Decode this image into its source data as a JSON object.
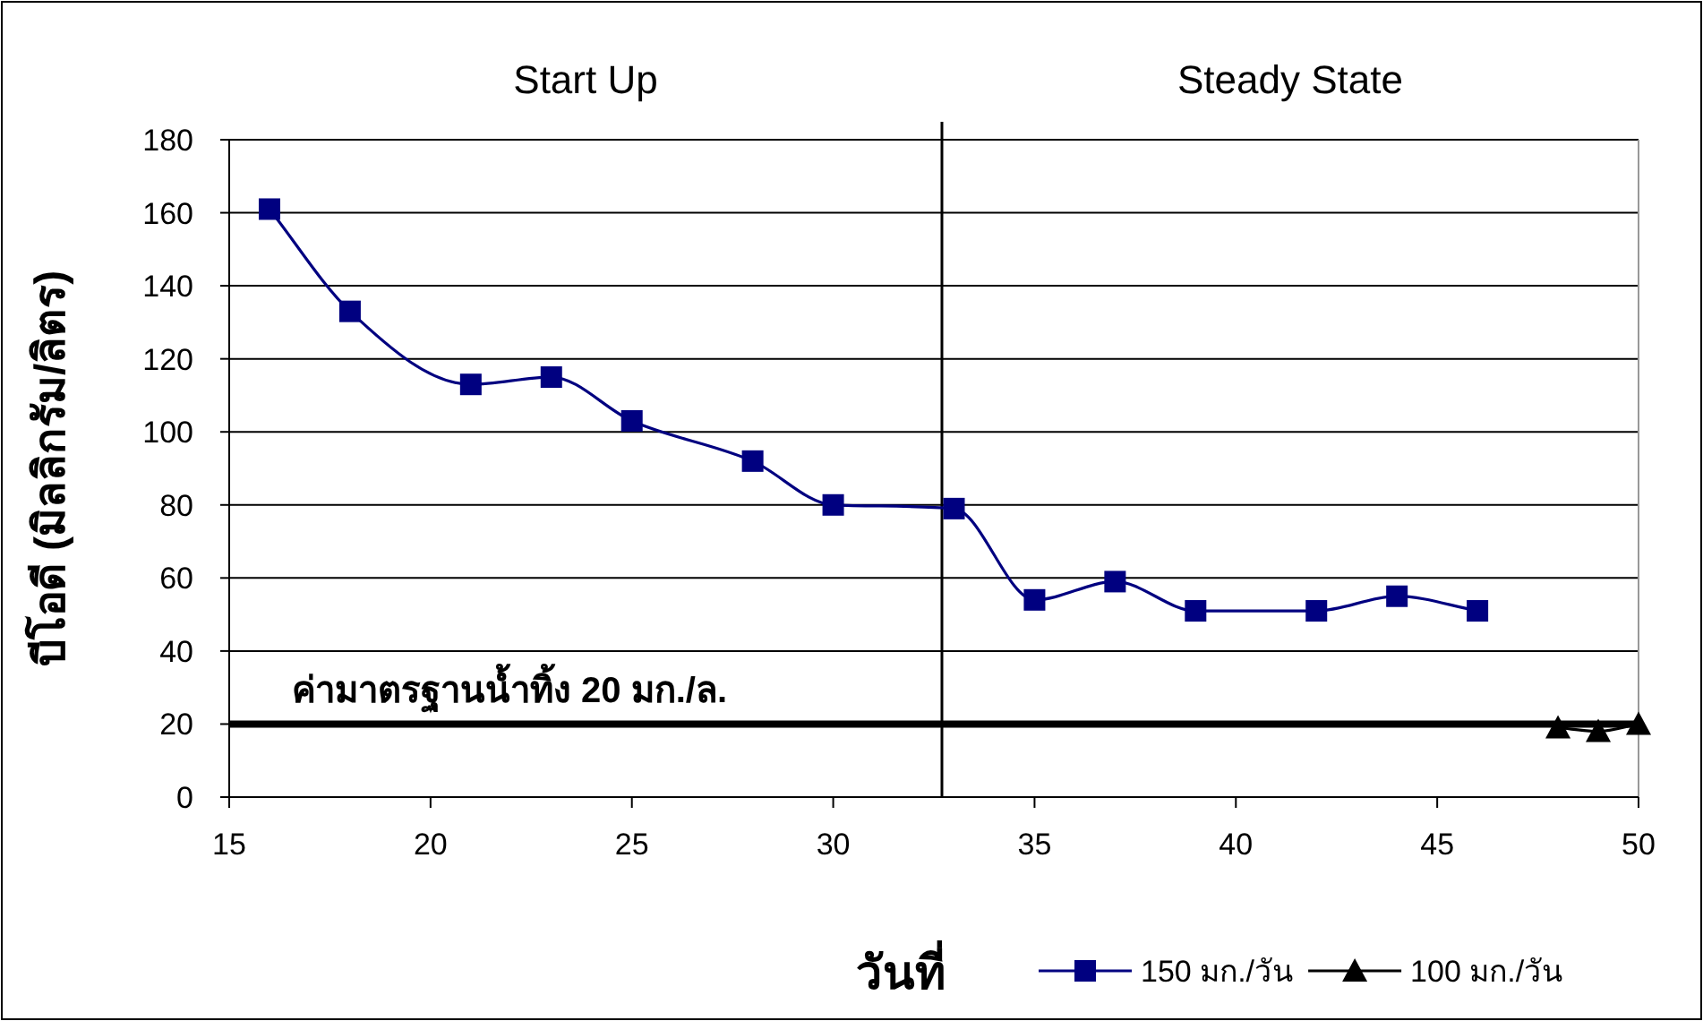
{
  "chart_data": {
    "type": "line",
    "xlabel": "วันที่",
    "ylabel": "บีโอดี (มิลลิกรัม/ลิตร)",
    "annotations": [
      "Start Up",
      "Steady State"
    ],
    "xlim": [
      15,
      50
    ],
    "xticks": [
      15,
      20,
      25,
      30,
      35,
      40,
      45,
      50
    ],
    "ylim": [
      0,
      180
    ],
    "yticks": [
      0,
      20,
      40,
      60,
      80,
      100,
      120,
      140,
      160,
      180
    ],
    "grid": "y",
    "legend": "bottom",
    "line_style": "solid",
    "ref_lines": [
      {
        "axis": "y",
        "value": 20,
        "label": "ค่ามาตรฐานน้ำทิ้ง 20 มก./ล.",
        "color": "#000000"
      },
      {
        "axis": "x",
        "value": 32.7,
        "color": "#000000"
      }
    ],
    "series": [
      {
        "name": "150 มก./วัน",
        "color": "#000080",
        "marker": "square",
        "x": [
          16,
          18,
          21,
          23,
          25,
          28,
          30,
          33,
          35,
          37,
          39,
          42,
          44,
          46
        ],
        "values": [
          161,
          133,
          113,
          115,
          103,
          92,
          80,
          79,
          54,
          59,
          51,
          51,
          55,
          51
        ]
      },
      {
        "name": "100 มก./วัน",
        "color": "#000000",
        "marker": "triangle",
        "x": [
          48,
          49,
          50
        ],
        "values": [
          19,
          18,
          20
        ]
      }
    ]
  }
}
